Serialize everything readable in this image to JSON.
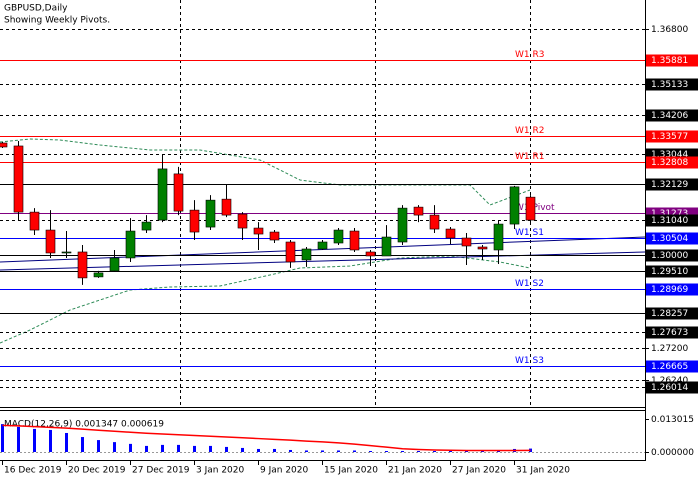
{
  "chart_data": [
    {
      "type": "candlestick",
      "title": "GBPUSD,Daily",
      "subtitle": "Showing Weekly Pivots.",
      "categories": [
        "16 Dec 2019",
        null,
        null,
        null,
        "20 Dec 2019",
        null,
        null,
        null,
        "27 Dec 2019",
        null,
        null,
        null,
        "3 Jan 2020",
        null,
        null,
        null,
        "9 Jan 2020",
        null,
        null,
        null,
        "15 Jan 2020",
        null,
        null,
        null,
        "21 Jan 2020",
        null,
        null,
        null,
        "27 Jan 2020",
        null,
        null,
        null,
        "31 Jan 2020",
        null
      ],
      "open": [
        1.3337,
        1.3328,
        1.3129,
        1.3075,
        1.3006,
        1.3009,
        1.2934,
        1.2952,
        1.2991,
        1.3075,
        1.3105,
        1.3244,
        1.3135,
        1.3084,
        1.3168,
        1.3123,
        1.3081,
        1.3069,
        1.3039,
        1.2985,
        1.3018,
        1.3036,
        1.3072,
        1.3009,
        1.2997,
        1.3039,
        1.3144,
        1.312,
        1.3078,
        1.3051,
        1.3024,
        1.3015,
        1.3093,
        1.3174
      ],
      "high": [
        1.334,
        1.3343,
        1.3141,
        1.3135,
        1.3072,
        1.303,
        1.2952,
        1.3015,
        1.3111,
        1.312,
        1.3301,
        1.3265,
        1.3165,
        1.318,
        1.3211,
        1.3129,
        1.3099,
        1.3075,
        1.3045,
        1.3024,
        1.3045,
        1.3081,
        1.3081,
        1.3015,
        1.309,
        1.315,
        1.315,
        1.315,
        1.3084,
        1.3066,
        1.303,
        1.3105,
        1.3208,
        1.318
      ],
      "low": [
        1.3322,
        1.3105,
        1.306,
        1.2991,
        1.2991,
        1.291,
        1.2931,
        1.2949,
        1.2979,
        1.3066,
        1.3099,
        1.312,
        1.3045,
        1.3075,
        1.3114,
        1.3045,
        1.3015,
        1.3036,
        1.2961,
        1.2964,
        1.3015,
        1.303,
        1.3009,
        1.2967,
        1.2997,
        1.303,
        1.3099,
        1.3066,
        1.3033,
        1.297,
        1.2985,
        1.2973,
        1.3078,
        1.3096
      ],
      "close": [
        1.3325,
        1.3129,
        1.3075,
        1.3006,
        1.3009,
        1.2931,
        1.2946,
        1.2991,
        1.3072,
        1.3099,
        1.3259,
        1.3132,
        1.3069,
        1.3165,
        1.312,
        1.3081,
        1.3063,
        1.3045,
        1.2979,
        1.3018,
        1.3039,
        1.3075,
        1.3015,
        1.2997,
        1.3054,
        1.3141,
        1.312,
        1.3078,
        1.3051,
        1.3027,
        1.3018,
        1.3093,
        1.3205,
        1.3105
      ],
      "up_color": "#008000",
      "down_color": "#ff0000",
      "ylim": [
        1.25425,
        1.37673
      ],
      "yticks": [
        {
          "value": 1.368,
          "label": "1.36800"
        },
        {
          "value": 1.272,
          "label": "1.27200"
        },
        {
          "value": 1.2624,
          "label": "1.26240"
        }
      ],
      "grid": true,
      "levels": [
        {
          "name": "W1 R3",
          "value": 1.35881,
          "color": "#ff0000"
        },
        {
          "value": 1.35133,
          "color": "#000000",
          "dash": true
        },
        {
          "value": 1.34206,
          "color": "#000000",
          "dash": true
        },
        {
          "name": "W1 R2",
          "value": 1.33577,
          "color": "#ff0000"
        },
        {
          "value": 1.33044,
          "color": "#000000",
          "dash": true
        },
        {
          "name": "W1 R1",
          "value": 1.32808,
          "color": "#ff0000"
        },
        {
          "value": 1.32129,
          "color": "#000000"
        },
        {
          "name": "W1 Pivot",
          "value": 1.31273,
          "color": "#800080"
        },
        {
          "value": 1.3104,
          "label": "1.31040",
          "color": "#000000",
          "dash": true
        },
        {
          "name": "W1 S1",
          "value": 1.30504,
          "color": "#0000ff"
        },
        {
          "value": 1.3,
          "label": "1.30000",
          "color": "#000000"
        },
        {
          "value": 1.2951,
          "label": "1.29510",
          "color": "#000000"
        },
        {
          "name": "W1 S2",
          "value": 1.28969,
          "color": "#0000ff"
        },
        {
          "value": 1.28257,
          "color": "#000000"
        },
        {
          "value": 1.27673,
          "color": "#000000",
          "dash": true
        },
        {
          "name": "W1 S3",
          "value": 1.26665,
          "color": "#0000ff"
        },
        {
          "value": 1.26014,
          "color": "#000000",
          "dash": true
        }
      ]
    },
    {
      "type": "macd",
      "title": "MACD(12,26,9) 0.001347 0.000619",
      "histogram": {
        "color": "#0000ff",
        "values": [
          0.011,
          0.0099,
          0.0091,
          0.0087,
          0.0075,
          0.0059,
          0.0047,
          0.0039,
          0.0032,
          0.0024,
          0.0028,
          0.0028,
          0.0024,
          0.0024,
          0.002,
          0.0016,
          0.0012,
          0.0012,
          0.0008,
          0.0006,
          0.0006,
          0.0006,
          0.0006,
          0.0004,
          0.0004,
          0.0004,
          0.0004,
          0.0004,
          0.0004,
          0.0004,
          0.0004,
          0.0004,
          0.0012,
          0.001347
        ]
      },
      "signal": {
        "color": "#ff0000",
        "values": [
          0.0105,
          0.0103,
          0.01,
          0.0097,
          0.0094,
          0.009,
          0.0086,
          0.0082,
          0.0078,
          0.0074,
          0.0071,
          0.0068,
          0.0065,
          0.0062,
          0.0059,
          0.0056,
          0.0053,
          0.005,
          0.0047,
          0.0043,
          0.004,
          0.0036,
          0.0031,
          0.0025,
          0.0019,
          0.0013,
          0.001,
          0.0008,
          0.0007,
          0.0006,
          0.0006,
          0.0006,
          0.0006,
          0.000619
        ]
      },
      "ylim": [
        -0.00276,
        0.01617
      ],
      "yticks": [
        0.013015,
        {
          "value": 0,
          "label": "0.000000"
        }
      ]
    }
  ]
}
